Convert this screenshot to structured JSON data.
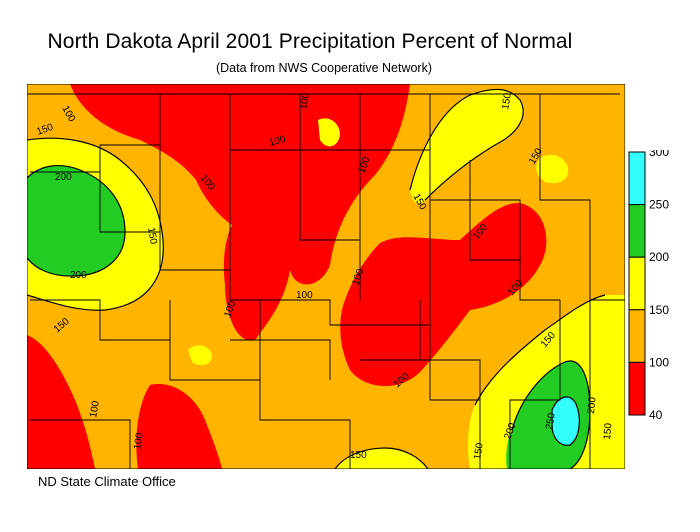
{
  "title": "North Dakota April 2001 Precipitation Percent of Normal",
  "subtitle": "(Data from NWS Cooperative Network)",
  "footer": "ND State Climate Office",
  "legend": {
    "ticks": [
      "300",
      "250",
      "200",
      "150",
      "100",
      "40"
    ],
    "bins": [
      {
        "range": "250-300",
        "color": "#33ffff"
      },
      {
        "range": "200-250",
        "color": "#22cc22"
      },
      {
        "range": "150-200",
        "color": "#ffff00"
      },
      {
        "range": "100-150",
        "color": "#ffb400"
      },
      {
        "range": "40-100",
        "color": "#ff0000"
      }
    ]
  },
  "map": {
    "base_color": "#ffb400",
    "contour_labels": [
      "100",
      "150",
      "200",
      "250"
    ]
  }
}
